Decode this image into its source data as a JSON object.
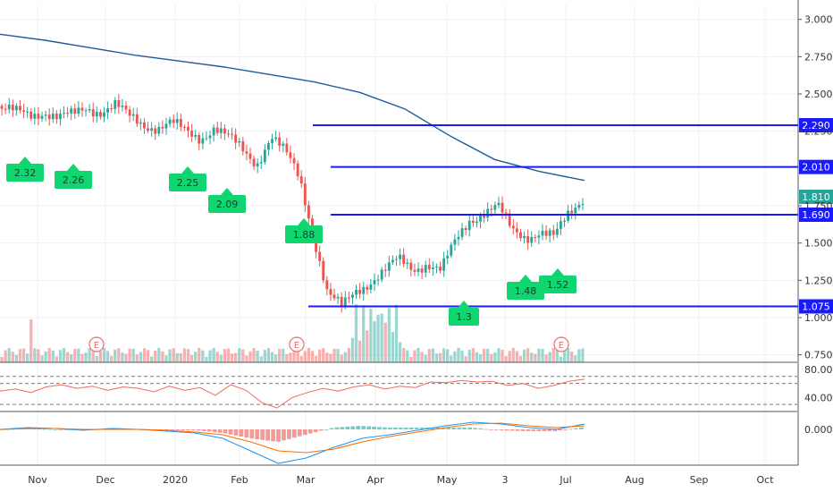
{
  "colors": {
    "up": "#26a69a",
    "down": "#ef5350",
    "ma": "#1f5c99",
    "level": "#1a1aff",
    "flag": "#0fd66f",
    "rsi": "#f06a5d",
    "macd": "#2196f3",
    "signal": "#ff6d00",
    "grid": "#eef0f3",
    "axis": "#555555",
    "event": "#e57373"
  },
  "chart_data": {
    "type": "candlestick",
    "x_labels": [
      "Nov",
      "Dec",
      "2020",
      "Feb",
      "Mar",
      "Apr",
      "May",
      "3",
      "Jul",
      "Aug",
      "Sep",
      "Oct"
    ],
    "price_axis": {
      "ticks": [
        "3.000",
        "2.750",
        "2.500",
        "2.250",
        "1.750",
        "1.500",
        "1.250",
        "1.000",
        "0.750"
      ],
      "range": [
        0.7,
        3.1
      ]
    },
    "levels": [
      {
        "value": 2.29,
        "label": "2.290",
        "start": "Mar"
      },
      {
        "value": 2.01,
        "label": "2.010",
        "start": "mid-Mar"
      },
      {
        "value": 1.69,
        "label": "1.690",
        "start": "mid-Mar"
      },
      {
        "value": 1.075,
        "label": "1.075",
        "start": "early-Mar"
      }
    ],
    "last_price": {
      "value": 1.81,
      "label": "1.810"
    },
    "pivot_labels": [
      {
        "label": "2.32",
        "direction": "low",
        "date": "late Oct"
      },
      {
        "label": "2.26",
        "direction": "low",
        "date": "mid Nov"
      },
      {
        "label": "2.25",
        "direction": "low",
        "date": "mid Jan"
      },
      {
        "label": "2.09",
        "direction": "low",
        "date": "early Feb"
      },
      {
        "label": "1.88",
        "direction": "low",
        "date": "late Feb"
      },
      {
        "label": "1.3",
        "direction": "low",
        "date": "early May"
      },
      {
        "label": "1.48",
        "direction": "low",
        "date": "mid Jun"
      },
      {
        "label": "1.52",
        "direction": "low",
        "date": "late Jun"
      }
    ],
    "moving_average": {
      "start": 2.9,
      "points": [
        2.9,
        2.86,
        2.81,
        2.76,
        2.72,
        2.68,
        2.63,
        2.58,
        2.51,
        2.4,
        2.22,
        2.06,
        1.98,
        1.92
      ]
    },
    "close_path": [
      2.4,
      2.37,
      2.36,
      2.39,
      2.34,
      2.35,
      2.41,
      2.39,
      2.42,
      2.34,
      2.3,
      2.28,
      2.3,
      2.24,
      2.21,
      2.28,
      2.2,
      2.12,
      2.04,
      2.22,
      2.1,
      1.94,
      1.56,
      1.16,
      1.06,
      1.18,
      1.25,
      1.31,
      1.38,
      1.33,
      1.37,
      1.31,
      1.5,
      1.66,
      1.71,
      1.74,
      1.58,
      1.55,
      1.58,
      1.53,
      1.69,
      1.81
    ],
    "volume_event_markers": [
      {
        "label": "E",
        "position": "Dec"
      },
      {
        "label": "E",
        "position": "Mar"
      },
      {
        "label": "E",
        "position": "Jul"
      }
    ],
    "rsi": {
      "axis_ticks": [
        "80.00",
        "40.00"
      ],
      "range": [
        20,
        90
      ],
      "bands": [
        70,
        60,
        30
      ],
      "path": [
        49,
        52,
        47,
        55,
        58,
        53,
        56,
        50,
        55,
        53,
        48,
        56,
        50,
        54,
        43,
        58,
        50,
        33,
        25,
        40,
        47,
        53,
        49,
        55,
        58,
        52,
        56,
        54,
        62,
        61,
        64,
        62,
        63,
        57,
        60,
        53,
        57,
        63,
        66
      ]
    },
    "macd": {
      "axis_ticks": [
        "0.000"
      ],
      "range": [
        -0.2,
        0.1
      ],
      "macd_path": [
        0.0,
        0.01,
        0.005,
        -0.005,
        0.005,
        0.0,
        -0.01,
        -0.02,
        -0.05,
        -0.12,
        -0.19,
        -0.16,
        -0.1,
        -0.05,
        -0.03,
        -0.005,
        0.02,
        0.04,
        0.03,
        0.01,
        0.0,
        0.03
      ],
      "signal_path": [
        0.0,
        0.005,
        0.005,
        0.0,
        0.0,
        0.0,
        -0.005,
        -0.015,
        -0.03,
        -0.07,
        -0.12,
        -0.13,
        -0.11,
        -0.07,
        -0.04,
        -0.015,
        0.01,
        0.03,
        0.035,
        0.02,
        0.01,
        0.02
      ]
    }
  }
}
